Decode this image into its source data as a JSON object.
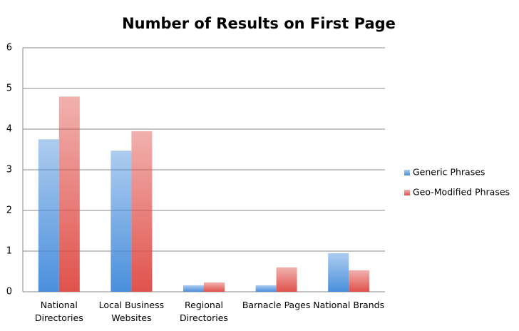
{
  "chart_data": {
    "type": "bar",
    "title": "Number of Results on First Page",
    "categories": [
      "National Directories",
      "Local Business Websites",
      "Regional Directories",
      "Barnacle Pages",
      "National Brands"
    ],
    "series": [
      {
        "name": "Generic Phrases",
        "color": "#4a8fdc",
        "values": [
          3.75,
          3.47,
          0.16,
          0.16,
          0.95
        ]
      },
      {
        "name": "Geo-Modified Phrases",
        "color": "#e0524c",
        "values": [
          4.8,
          3.95,
          0.23,
          0.6,
          0.53
        ]
      }
    ],
    "ylim": [
      0,
      6
    ],
    "yticks": [
      0,
      1,
      2,
      3,
      4,
      5,
      6
    ],
    "grid": true,
    "legend": "right"
  }
}
